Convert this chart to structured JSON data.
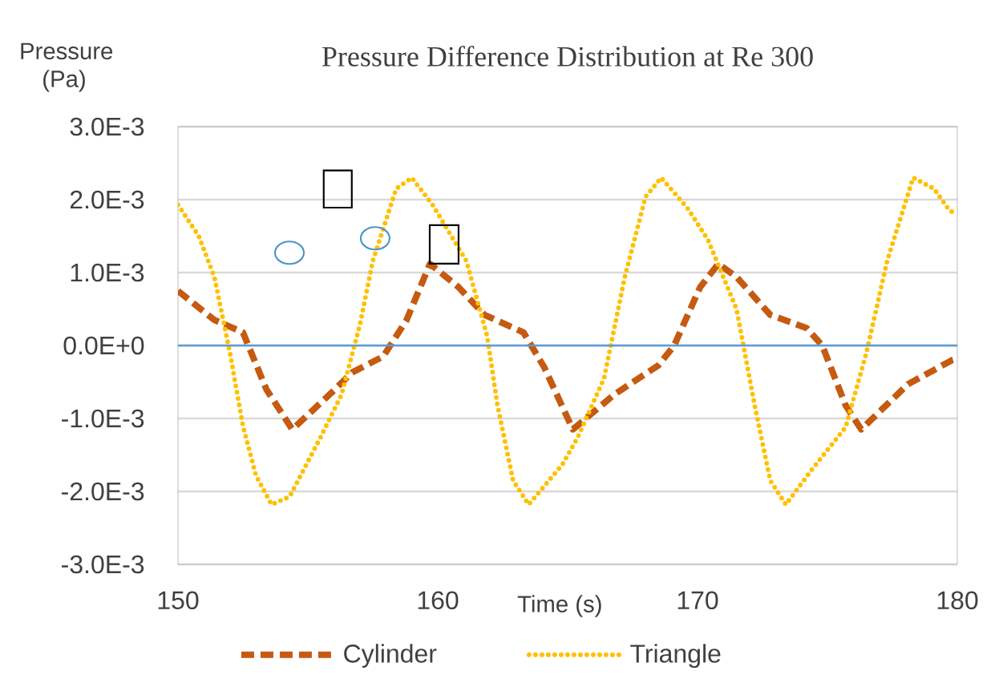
{
  "chart_data": {
    "type": "line",
    "title": "Pressure Difference  Distribution  at Re 300",
    "xlabel": "Time (s)",
    "ylabel": "Pressure (Pa)",
    "xlim": [
      150,
      180
    ],
    "xticks": [
      150,
      160,
      170,
      180
    ],
    "ylim": [
      -0.003,
      0.003
    ],
    "yticks": [
      {
        "value": -0.003,
        "label": "-3.0E-3"
      },
      {
        "value": -0.002,
        "label": "-2.0E-3"
      },
      {
        "value": -0.001,
        "label": "-1.0E-3"
      },
      {
        "value": 0,
        "label": "0.0E+0"
      },
      {
        "value": 0.001,
        "label": "1.0E-3"
      },
      {
        "value": 0.002,
        "label": "2.0E-3"
      },
      {
        "value": 0.003,
        "label": "3.0E-3"
      }
    ],
    "grid": "y",
    "legend": "bottom",
    "marker": "none",
    "ref_lines": [
      {
        "axis": "y",
        "value": 0,
        "color": "#5b9bd5",
        "line_style": "solid"
      }
    ],
    "series": [
      {
        "name": "Cylinder",
        "color": "#c55a11",
        "line_style": "dashed",
        "x": [
          150,
          151.4,
          152.5,
          153.4,
          154.4,
          155.9,
          156.7,
          157.9,
          158.8,
          159.7,
          160.8,
          161.8,
          163.3,
          164.1,
          165.2,
          166.8,
          168.5,
          169.1,
          170.1,
          170.8,
          171.5,
          172.8,
          174.2,
          174.8,
          175.7,
          176.3,
          178.1,
          179.8,
          180
        ],
        "values": [
          0.00075,
          0.00035,
          0.00018,
          -0.0006,
          -0.00115,
          -0.00065,
          -0.00037,
          -0.00015,
          0.00035,
          0.00112,
          0.0008,
          0.00042,
          0.00018,
          -0.0003,
          -0.00115,
          -0.00067,
          -0.00027,
          0,
          0.0008,
          0.00112,
          0.00094,
          0.00042,
          0.00024,
          0,
          -0.00082,
          -0.00115,
          -0.00053,
          -0.0002,
          -0.00018
        ]
      },
      {
        "name": "Triangle",
        "color": "#ffc000",
        "line_style": "dotted",
        "x": [
          150,
          150.8,
          151.4,
          152,
          152.5,
          153,
          153.6,
          154.3,
          155.5,
          156.3,
          157,
          157.5,
          158.4,
          159,
          159.8,
          161.1,
          161.9,
          162.3,
          162.9,
          163.5,
          164.8,
          165.4,
          166.4,
          167.2,
          168,
          168.6,
          169.6,
          170.4,
          171.5,
          172.2,
          172.8,
          173.4,
          174.4,
          175.7,
          176.5,
          177.3,
          178.3,
          179.1,
          179.7,
          180
        ],
        "values": [
          0.00193,
          0.0015,
          0.00094,
          -0.0001,
          -0.0011,
          -0.00178,
          -0.00218,
          -0.00207,
          -0.00125,
          -0.00067,
          0.00028,
          0.00116,
          0.00215,
          0.0023,
          0.00193,
          0.00116,
          0.00013,
          -0.00082,
          -0.00185,
          -0.00218,
          -0.00163,
          -0.00125,
          -0.00045,
          0.00094,
          0.00204,
          0.0023,
          0.00189,
          0.00145,
          0.0005,
          -0.00082,
          -0.00185,
          -0.00218,
          -0.0017,
          -0.00112,
          -0.0001,
          0.00116,
          0.0023,
          0.00215,
          0.00185,
          0.0018
        ]
      }
    ]
  }
}
